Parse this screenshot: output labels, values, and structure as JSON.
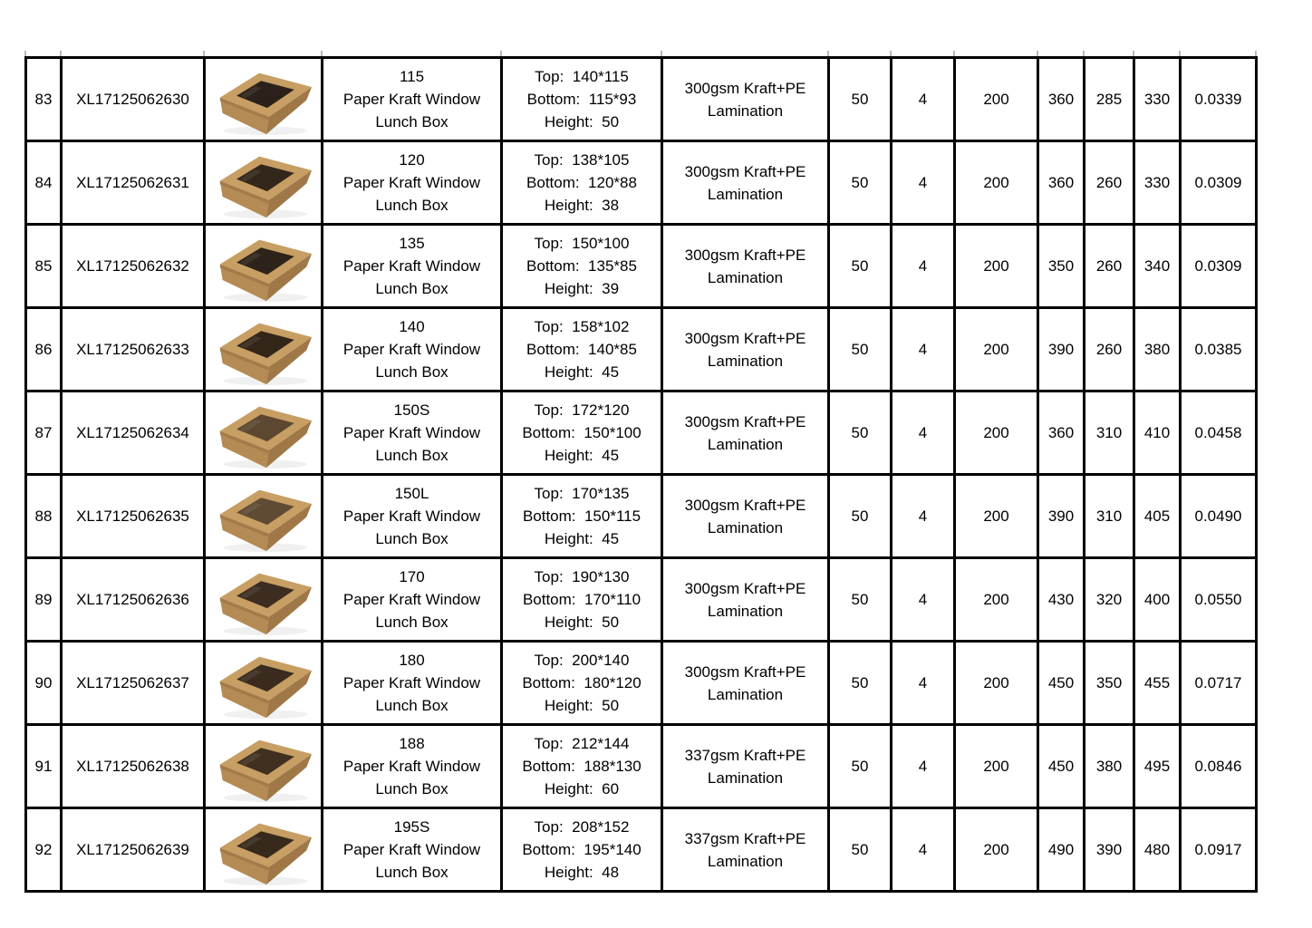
{
  "document": {
    "type_note": "product specification price-list table, rows 83-92, no header row visible"
  },
  "theme": {
    "border_color": "#000000",
    "background": "#ffffff",
    "box_top_color": "#c79e63",
    "box_front_color": "#b48b54",
    "box_side_color": "#a07847"
  },
  "rows": [
    {
      "no": "83",
      "code": "XL17125062630",
      "size": "115",
      "name": "Paper Kraft Window Lunch Box",
      "dims": [
        "Top:  140*115",
        "Bottom:  115*93",
        "Height:  50"
      ],
      "material": "300gsm Kraft+PE Lamination",
      "specs": [
        "50",
        "4",
        "200",
        "360",
        "285",
        "330",
        "0.0339"
      ],
      "window_color": "#2b211a"
    },
    {
      "no": "84",
      "code": "XL17125062631",
      "size": "120",
      "name": "Paper Kraft Window Lunch Box",
      "dims": [
        "Top:  138*105",
        "Bottom:  120*88",
        "Height:  38"
      ],
      "material": "300gsm Kraft+PE Lamination",
      "specs": [
        "50",
        "4",
        "200",
        "360",
        "260",
        "330",
        "0.0309"
      ],
      "window_color": "#33271c"
    },
    {
      "no": "85",
      "code": "XL17125062632",
      "size": "135",
      "name": "Paper Kraft Window Lunch Box",
      "dims": [
        "Top:  150*100",
        "Bottom:  135*85",
        "Height:  39"
      ],
      "material": "300gsm Kraft+PE Lamination",
      "specs": [
        "50",
        "4",
        "200",
        "350",
        "260",
        "340",
        "0.0309"
      ],
      "window_color": "#2e231a"
    },
    {
      "no": "86",
      "code": "XL17125062633",
      "size": "140",
      "name": "Paper Kraft Window Lunch Box",
      "dims": [
        "Top:  158*102",
        "Bottom:  140*85",
        "Height:  45"
      ],
      "material": "300gsm Kraft+PE Lamination",
      "specs": [
        "50",
        "4",
        "200",
        "390",
        "260",
        "380",
        "0.0385"
      ],
      "window_color": "#332619"
    },
    {
      "no": "87",
      "code": "XL17125062634",
      "size": "150S",
      "name": "Paper Kraft Window Lunch Box",
      "dims": [
        "Top:  172*120",
        "Bottom:  150*100",
        "Height:  45"
      ],
      "material": "300gsm Kraft+PE Lamination",
      "specs": [
        "50",
        "4",
        "200",
        "360",
        "310",
        "410",
        "0.0458"
      ],
      "window_color": "#5c4731"
    },
    {
      "no": "88",
      "code": "XL17125062635",
      "size": "150L",
      "name": "Paper Kraft Window Lunch Box",
      "dims": [
        "Top:  170*135",
        "Bottom:  150*115",
        "Height:  45"
      ],
      "material": "300gsm Kraft+PE Lamination",
      "specs": [
        "50",
        "4",
        "200",
        "390",
        "310",
        "405",
        "0.0490"
      ],
      "window_color": "#5f4a33"
    },
    {
      "no": "89",
      "code": "XL17125062636",
      "size": "170",
      "name": "Paper Kraft Window Lunch Box",
      "dims": [
        "Top:  190*130",
        "Bottom:  170*110",
        "Height:  50"
      ],
      "material": "300gsm Kraft+PE Lamination",
      "specs": [
        "50",
        "4",
        "200",
        "430",
        "320",
        "400",
        "0.0550"
      ],
      "window_color": "#3c2d20"
    },
    {
      "no": "90",
      "code": "XL17125062637",
      "size": "180",
      "name": "Paper Kraft Window Lunch Box",
      "dims": [
        "Top:  200*140",
        "Bottom:  180*120",
        "Height:  50"
      ],
      "material": "300gsm Kraft+PE Lamination",
      "specs": [
        "50",
        "4",
        "200",
        "450",
        "350",
        "455",
        "0.0717"
      ],
      "window_color": "#3a2b1e"
    },
    {
      "no": "91",
      "code": "XL17125062638",
      "size": "188",
      "name": "Paper Kraft Window Lunch Box",
      "dims": [
        "Top:  212*144",
        "Bottom:  188*130",
        "Height:  60"
      ],
      "material": "337gsm Kraft+PE Lamination",
      "specs": [
        "50",
        "4",
        "200",
        "450",
        "380",
        "495",
        "0.0846"
      ],
      "window_color": "#40301f"
    },
    {
      "no": "92",
      "code": "XL17125062639",
      "size": "195S",
      "name": "Paper Kraft Window Lunch Box",
      "dims": [
        "Top:  208*152",
        "Bottom:  195*140",
        "Height:  48"
      ],
      "material": "337gsm Kraft+PE Lamination",
      "specs": [
        "50",
        "4",
        "200",
        "490",
        "390",
        "480",
        "0.0917"
      ],
      "window_color": "#372a1c"
    }
  ]
}
